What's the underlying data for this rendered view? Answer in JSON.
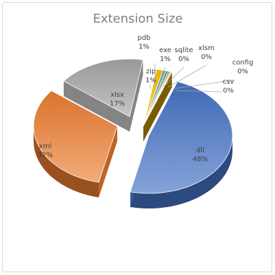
{
  "chart_data": {
    "type": "pie",
    "style": "3d-exploded",
    "title": "Extension Size",
    "legend": "none",
    "slices": [
      {
        "name": "dll",
        "label": "48%",
        "value": 48,
        "color": "#4472c4"
      },
      {
        "name": "xml",
        "label": "32%",
        "value": 32,
        "color": "#ed7d31"
      },
      {
        "name": "xlsx",
        "label": "17%",
        "value": 17,
        "color": "#a5a5a5"
      },
      {
        "name": "zip",
        "label": "1%",
        "value": 1.2,
        "color": "#ffc000"
      },
      {
        "name": "pdb",
        "label": "1%",
        "value": 0.6,
        "color": "#5b9bd5"
      },
      {
        "name": "exe",
        "label": "1%",
        "value": 0.5,
        "color": "#70ad47"
      },
      {
        "name": "sqlite",
        "label": "0%",
        "value": 0.2,
        "color": "#264478"
      },
      {
        "name": "xlsm",
        "label": "0%",
        "value": 0.2,
        "color": "#9e480e"
      },
      {
        "name": "config",
        "label": "0%",
        "value": 0.15,
        "color": "#636363"
      },
      {
        "name": "csv",
        "label": "0%",
        "value": 0.15,
        "color": "#997300"
      }
    ]
  }
}
